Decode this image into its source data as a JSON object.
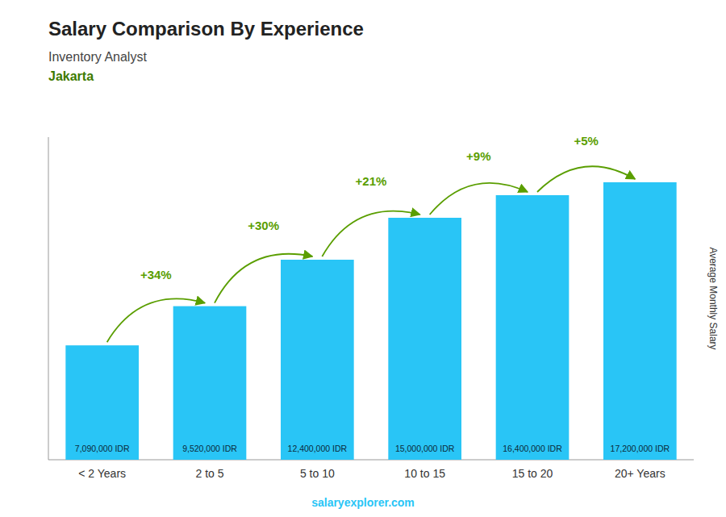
{
  "chart_data": {
    "type": "bar",
    "title": "Salary Comparison By Experience",
    "subtitle": [
      "Inventory Analyst",
      "Jakarta"
    ],
    "ylabel": "Average Monthly Salary",
    "categories": [
      "< 2 Years",
      "2 to 5",
      "5 to 10",
      "10 to 15",
      "15 to 20",
      "20+ Years"
    ],
    "values": [
      7090000,
      9520000,
      12400000,
      15000000,
      16400000,
      17200000
    ],
    "value_labels": [
      "7,090,000 IDR",
      "9,520,000 IDR",
      "12,400,000 IDR",
      "15,000,000 IDR",
      "16,400,000 IDR",
      "17,200,000 IDR"
    ],
    "annotations": [
      "+34%",
      "+30%",
      "+21%",
      "+9%",
      "+5%"
    ],
    "note": "salaryexplorer.com",
    "color": "#29c5f6",
    "ylim": [
      0,
      20000000
    ],
    "grid": false,
    "data_labels": true,
    "tick_labels": "x"
  }
}
